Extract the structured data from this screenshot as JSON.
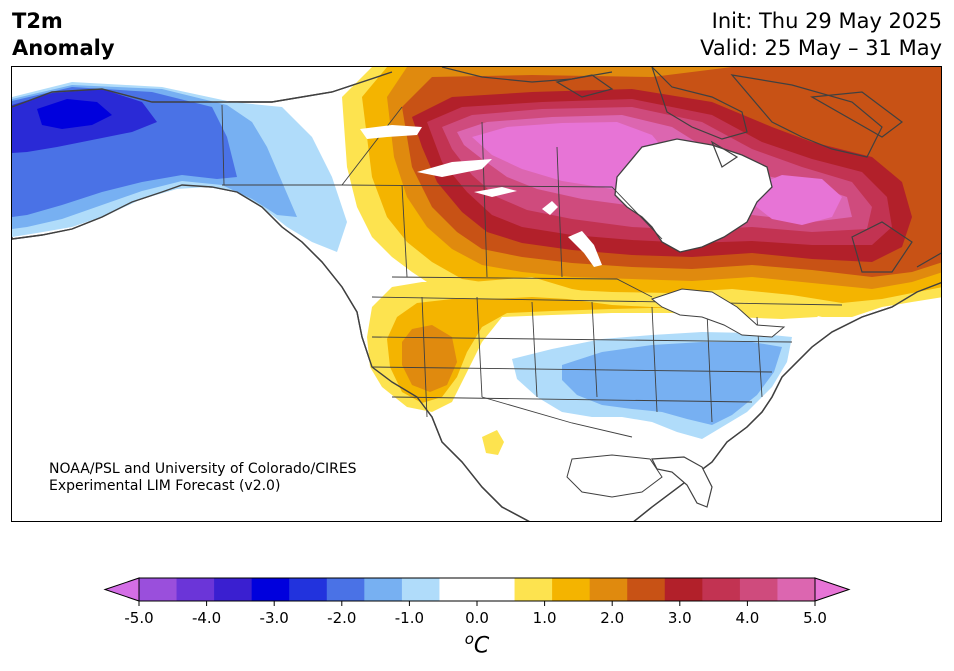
{
  "header": {
    "variable_line1": "T2m",
    "variable_line2": "Anomaly",
    "init_label": "Init: Thu 29 May 2025",
    "valid_label": "Valid: 25 May – 31 May"
  },
  "credit": {
    "line1": "NOAA/PSL and University of Colorado/CIRES",
    "line2": "Experimental LIM Forecast (v2.0)"
  },
  "colorbar": {
    "unit_base": "C",
    "unit_degree": "o",
    "colors": [
      "#d46ee6",
      "#9a4fdc",
      "#6b35d8",
      "#3a1fd0",
      "#0000dd",
      "#2233dd",
      "#4a72e6",
      "#77b0f2",
      "#b0dcfa",
      "#ffffff",
      "#ffffff",
      "#fde34f",
      "#f4b400",
      "#e08a0e",
      "#c85215",
      "#b2202a",
      "#c23352",
      "#cf4b7d",
      "#dc66b0",
      "#e774d6"
    ],
    "ticks": [
      "-5.0",
      "-4.0",
      "-3.0",
      "-2.0",
      "-1.0",
      "0.0",
      "1.0",
      "2.0",
      "3.0",
      "4.0",
      "5.0"
    ]
  },
  "map_colors": {
    "ocean": "#ffffff",
    "coast": "#404040",
    "deep_blue": "#2a2ad6",
    "mid_blue": "#4a72e6",
    "light_blue": "#77b0f2",
    "pale_blue": "#b0dcfa",
    "yellow": "#fde34f",
    "gold": "#f4b400",
    "orange": "#e08a0e",
    "dark_orange": "#c85215",
    "red": "#b2202a",
    "crimson": "#c23352",
    "rose": "#cf4b7d",
    "pink": "#dc66b0",
    "magenta": "#e774d6"
  }
}
